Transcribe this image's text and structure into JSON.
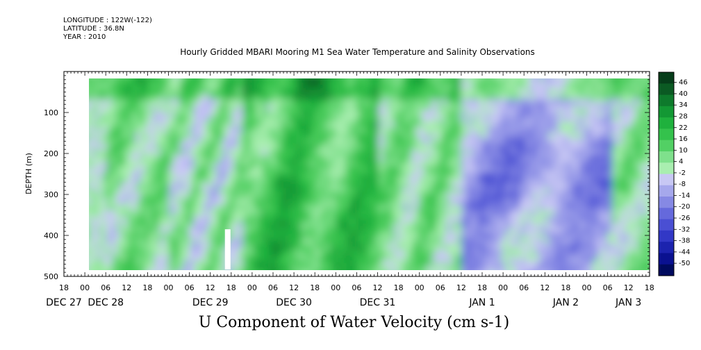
{
  "meta": {
    "longitude": "LONGITUDE : 122W(-122)",
    "latitude": "LATITUDE : 36.8N",
    "year": "YEAR : 2010"
  },
  "chart_data": {
    "type": "heatmap",
    "title": "Hourly Gridded MBARI Mooring M1 Sea Water Temperature and Salinity Observations",
    "xlabel": "U Component of Water Velocity (cm s-1)",
    "ylabel": "DEPTH (m)",
    "ylim": [
      500,
      0
    ],
    "y_ticks": [
      100,
      200,
      300,
      400,
      500
    ],
    "x_hour_labels": [
      "18",
      "00",
      "06",
      "12",
      "18",
      "00",
      "06",
      "12",
      "18",
      "00",
      "06",
      "12",
      "18",
      "00",
      "06",
      "12",
      "18",
      "00",
      "06",
      "12",
      "18",
      "00",
      "06",
      "12",
      "18",
      "00",
      "06",
      "12",
      "18"
    ],
    "x_date_labels": [
      {
        "label": "DEC 27",
        "tick": 0
      },
      {
        "label": "DEC 28",
        "tick": 2
      },
      {
        "label": "DEC 29",
        "tick": 7
      },
      {
        "label": "DEC 30",
        "tick": 11
      },
      {
        "label": "DEC 31",
        "tick": 15
      },
      {
        "label": "JAN  1",
        "tick": 20
      },
      {
        "label": "JAN  2",
        "tick": 24
      },
      {
        "label": "JAN  3",
        "tick": 27
      }
    ],
    "colorbar": {
      "levels": [
        "46",
        "40",
        "34",
        "28",
        "22",
        "16",
        "10",
        "4",
        "-2",
        "-8",
        "-14",
        "-20",
        "-26",
        "-32",
        "-38",
        "-44",
        "-50"
      ],
      "colors": [
        "#063d1a",
        "#0b5a23",
        "#0e7a2c",
        "#139834",
        "#1fb13d",
        "#34c24c",
        "#52d064",
        "#7fe08c",
        "#a9eeb0",
        "#c8c8f4",
        "#a6a8ec",
        "#8689e4",
        "#6569dc",
        "#4a4fd3",
        "#3238c6",
        "#1c23ae",
        "#0a1190",
        "#000a5e"
      ]
    },
    "field_summary": [
      {
        "period": "DEC 28 00 to DEC 29 12",
        "u_range": [
          -14,
          16
        ]
      },
      {
        "period": "DEC 29 18 to DEC 31 06",
        "u_range": [
          4,
          34
        ]
      },
      {
        "period": "DEC 31 06 to JAN 1 06",
        "u_range": [
          -8,
          16
        ]
      },
      {
        "period": "JAN 1 06 to JAN 3 18",
        "u_range": [
          -26,
          22
        ]
      }
    ]
  }
}
